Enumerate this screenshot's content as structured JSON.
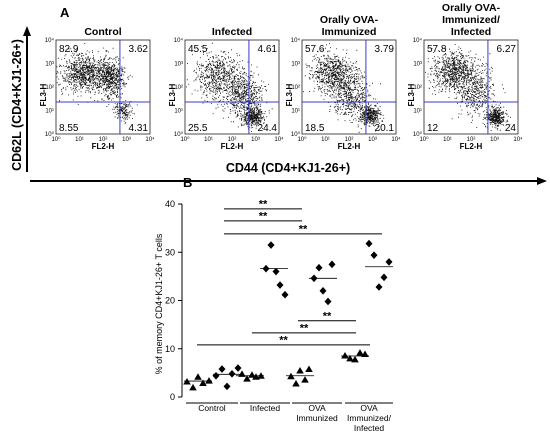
{
  "panel_a": {
    "letter": "A",
    "flow_x_axis_label": "FL2-H",
    "flow_y_axis_label": "FL3-H",
    "log_ticks": [
      "10⁰",
      "10¹",
      "10²",
      "10³",
      "10⁴"
    ],
    "shared_y_label": "CD62L (CD4+KJ1-26+)",
    "shared_x_label": "CD44 (CD4+KJ1-26+)",
    "plots": [
      {
        "title_lines": [
          "Control"
        ],
        "quadrants": {
          "upper_left": "82.9",
          "upper_right": "3.62",
          "lower_left": "8.55",
          "lower_right": "4.31"
        }
      },
      {
        "title_lines": [
          "Infected"
        ],
        "quadrants": {
          "upper_left": "45.5",
          "upper_right": "4.61",
          "lower_left": "25.5",
          "lower_right": "24.4"
        }
      },
      {
        "title_lines": [
          "Orally OVA-",
          "Immunized"
        ],
        "quadrants": {
          "upper_left": "57.6",
          "upper_right": "3.79",
          "lower_left": "18.5",
          "lower_right": "20.1"
        }
      },
      {
        "title_lines": [
          "Orally OVA-",
          "Immunized/",
          "Infected"
        ],
        "quadrants": {
          "upper_left": "57.8",
          "upper_right": "6.27",
          "lower_left": "12",
          "lower_right": "24"
        }
      }
    ]
  },
  "panel_b": {
    "letter": "B",
    "significance_label": "**",
    "chart_data": {
      "type": "scatter",
      "ylabel": "% of memory CD4+KJ1-26+ T cells",
      "xlabel": "",
      "ylim": [
        0,
        40
      ],
      "yticks": [
        0,
        10,
        20,
        30,
        40
      ],
      "categories": [
        "Control",
        "Infected",
        "OVA\nImmunized",
        "OVA\nImmunized/\nInfected"
      ],
      "series": [
        {
          "marker": "triangle",
          "values": [
            [
              3.2,
              2.0,
              4.2,
              2.9,
              3.4
            ],
            [
              4.8,
              3.8,
              4.6,
              4.2,
              4.4
            ],
            [
              4.3,
              2.8,
              5.5,
              3.6,
              5.8
            ],
            [
              8.6,
              8.0,
              7.8,
              9.2,
              8.9
            ]
          ],
          "means": [
            3.3,
            4.4,
            4.4,
            8.5
          ]
        },
        {
          "marker": "diamond",
          "values": [
            [
              4.4,
              5.8,
              2.2,
              4.8,
              6.0
            ],
            [
              26.6,
              31.5,
              26.0,
              23.2,
              21.2
            ],
            [
              24.6,
              26.8,
              22.0,
              19.8,
              27.5
            ],
            [
              31.8,
              29.4,
              22.8,
              24.8,
              28.0
            ]
          ],
          "means": [
            4.7,
            26.6,
            24.6,
            27.0
          ]
        }
      ],
      "significance": [
        {
          "from": 0,
          "to": 1,
          "y": 39,
          "label": "**"
        },
        {
          "from": 0,
          "to": 2,
          "y": 36.5,
          "label": "**"
        },
        {
          "from": 0,
          "to": 3,
          "y": 33.8,
          "label": "**"
        },
        {
          "from": 2,
          "to": 3,
          "y": 15.8,
          "label": "**"
        },
        {
          "from": 1,
          "to": 3,
          "y": 13.3,
          "label": "**"
        },
        {
          "from": 0,
          "to": 3,
          "y": 10.8,
          "label": "**"
        }
      ]
    }
  }
}
